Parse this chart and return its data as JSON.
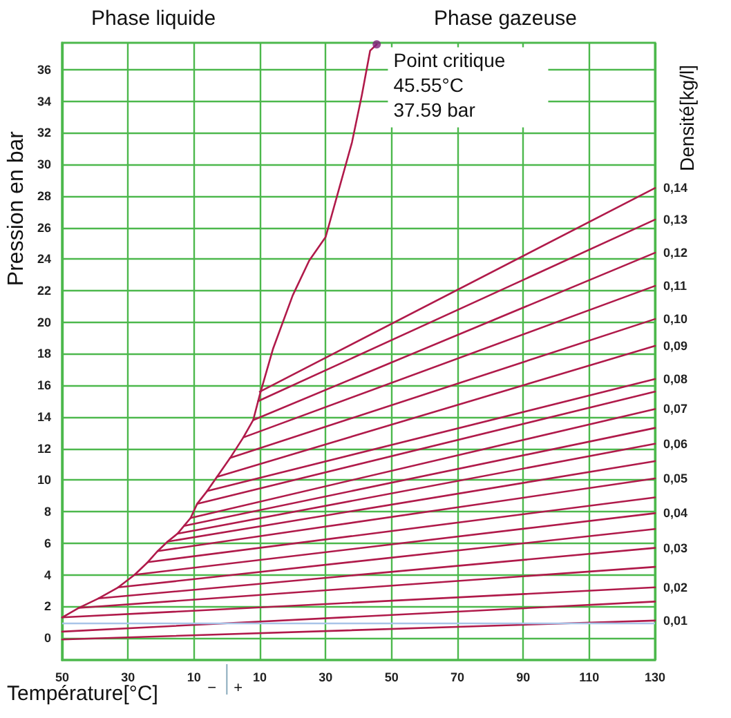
{
  "chart_data": {
    "type": "line",
    "xlabel": "Température[°C]",
    "ylabel": "Pression en bar",
    "annotations": [
      "Phase liquide",
      "Phase gazeuse",
      "Densité[kg/l]",
      "−",
      "+",
      {
        "text": "Point critique\n45.55°C\n37.59 bar",
        "x": 45.55,
        "y": 37.59
      }
    ],
    "xlim": [
      -50,
      130
    ],
    "ylim": [
      -1.4,
      37.7
    ],
    "xticks": [
      {
        "value": -50,
        "label": "50"
      },
      {
        "value": -30,
        "label": "30"
      },
      {
        "value": -10,
        "label": "10"
      },
      10,
      30,
      50,
      70,
      90,
      110,
      130
    ],
    "yticks": [
      0,
      2,
      4,
      6,
      8,
      10,
      12,
      14,
      16,
      18,
      20,
      22,
      24,
      26,
      28,
      30,
      32,
      34,
      36
    ],
    "grid": true,
    "legend": false,
    "marker": "none",
    "line_style": "solid",
    "ref_lines": [
      {
        "axis": "y",
        "value": 0.9,
        "color": "#a8c4e8"
      }
    ],
    "series": [
      {
        "color": "#b01a4a",
        "x": [
          -50,
          -45,
          -39,
          -33,
          -28,
          -24,
          -21,
          -18,
          -15,
          -13,
          -11,
          -9,
          -6,
          -3,
          1,
          5,
          8,
          10,
          14,
          20,
          25,
          30,
          34,
          38,
          41,
          43.5,
          45.5
        ],
        "values": [
          1.3,
          1.9,
          2.5,
          3.2,
          4,
          4.8,
          5.5,
          6.1,
          6.6,
          7.1,
          7.6,
          8.5,
          9.3,
          10.2,
          11.4,
          12.7,
          13.8,
          15.4,
          18.3,
          21.7,
          23.9,
          25.4,
          28.4,
          31.4,
          34.4,
          37.2,
          37.6
        ]
      },
      {
        "type": "scatter",
        "marker": "circle",
        "color": "#80207a",
        "x": [
          45.5
        ],
        "values": [
          37.6
        ]
      },
      {
        "name": "0,14",
        "color": "#b01a4a",
        "x": [
          10,
          130
        ],
        "values": [
          15.6,
          28.5
        ]
      },
      {
        "name": "0,13",
        "color": "#b01a4a",
        "x": [
          9.5,
          130
        ],
        "values": [
          15,
          26.5
        ]
      },
      {
        "name": "0,12",
        "color": "#b01a4a",
        "x": [
          8,
          130
        ],
        "values": [
          13.8,
          24.4
        ]
      },
      {
        "name": "0,11",
        "color": "#b01a4a",
        "x": [
          5,
          130
        ],
        "values": [
          12.7,
          22.3
        ]
      },
      {
        "name": "0,10",
        "color": "#b01a4a",
        "x": [
          1,
          130
        ],
        "values": [
          11.4,
          20.2
        ]
      },
      {
        "name": "0,09",
        "color": "#b01a4a",
        "x": [
          -3,
          130
        ],
        "values": [
          10.2,
          18.5
        ]
      },
      {
        "name": "0,08",
        "color": "#b01a4a",
        "x": [
          -6,
          130
        ],
        "values": [
          9.3,
          16.4
        ]
      },
      {
        "color": "#b01a4a",
        "x": [
          -9,
          130
        ],
        "values": [
          8.5,
          15.6
        ]
      },
      {
        "name": "0,07",
        "color": "#b01a4a",
        "x": [
          -11,
          130
        ],
        "values": [
          7.6,
          14.5
        ]
      },
      {
        "color": "#b01a4a",
        "x": [
          -13,
          130
        ],
        "values": [
          7.1,
          13.3
        ]
      },
      {
        "name": "0,06",
        "color": "#b01a4a",
        "x": [
          -15,
          130
        ],
        "values": [
          6.6,
          12.3
        ]
      },
      {
        "color": "#b01a4a",
        "x": [
          -18,
          130
        ],
        "values": [
          6.1,
          11.2
        ]
      },
      {
        "name": "0,05",
        "color": "#b01a4a",
        "x": [
          -21,
          130
        ],
        "values": [
          5.5,
          10.1
        ]
      },
      {
        "color": "#b01a4a",
        "x": [
          -24,
          130
        ],
        "values": [
          4.8,
          8.9
        ]
      },
      {
        "name": "0,04",
        "color": "#b01a4a",
        "x": [
          -28,
          130
        ],
        "values": [
          4,
          7.9
        ]
      },
      {
        "color": "#b01a4a",
        "x": [
          -33,
          130
        ],
        "values": [
          3.2,
          6.9
        ]
      },
      {
        "name": "0,03",
        "color": "#b01a4a",
        "x": [
          -39,
          130
        ],
        "values": [
          2.5,
          5.7
        ]
      },
      {
        "color": "#b01a4a",
        "x": [
          -45,
          130
        ],
        "values": [
          1.9,
          4.5
        ]
      },
      {
        "name": "0,02",
        "color": "#b01a4a",
        "x": [
          -50,
          130
        ],
        "values": [
          1.3,
          3.2
        ]
      },
      {
        "color": "#b01a4a",
        "x": [
          -50,
          130
        ],
        "values": [
          0.4,
          2.3
        ]
      },
      {
        "name": "0,01",
        "color": "#b01a4a",
        "x": [
          -50,
          130
        ],
        "values": [
          -0.1,
          1.1
        ]
      }
    ]
  }
}
